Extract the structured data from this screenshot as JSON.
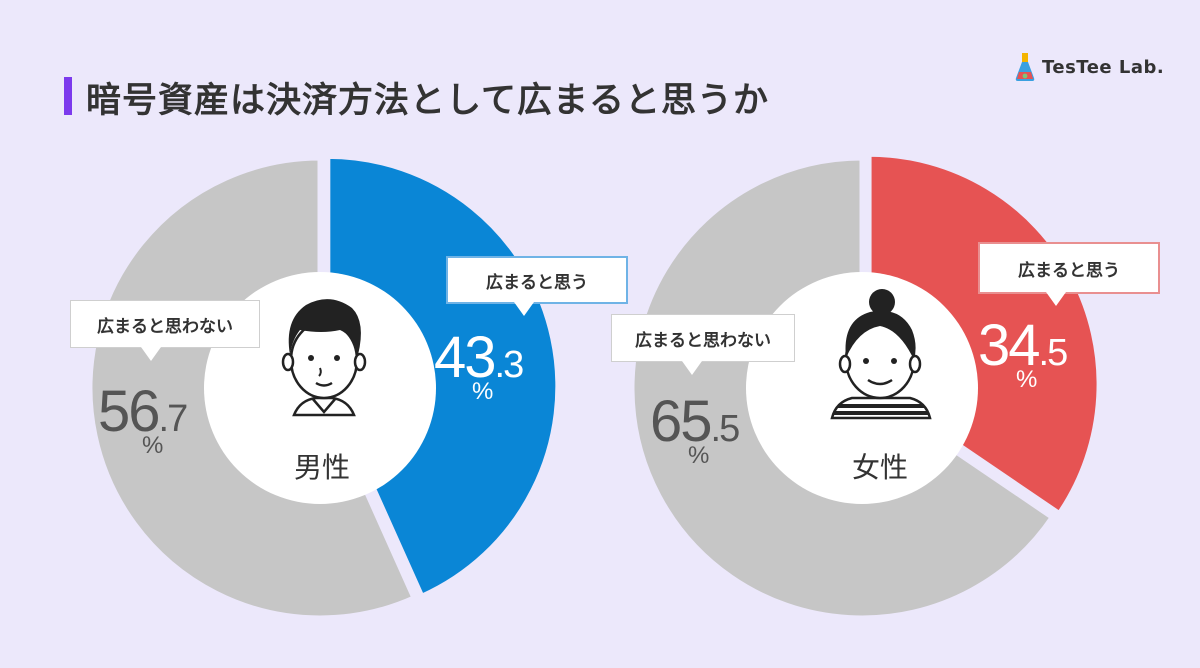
{
  "title": "暗号資産は決済方法として広まると思うか",
  "brand": {
    "name": "TesTee Lab."
  },
  "colors": {
    "background": "#ece8fb",
    "accent": "#7c3aed",
    "male_yes": "#0a86d6",
    "female_yes": "#e65353",
    "no": "#c6c6c6"
  },
  "chart_data": [
    {
      "type": "pie",
      "label": "男性",
      "slices": [
        {
          "name": "広まると思う",
          "value": 43.3,
          "color": "#0a86d6"
        },
        {
          "name": "広まると思わない",
          "value": 56.7,
          "color": "#c6c6c6"
        }
      ],
      "values_display": {
        "yes_int": "43",
        "yes_dec": ".3",
        "no_int": "56",
        "no_dec": ".7",
        "unit": "%"
      }
    },
    {
      "type": "pie",
      "label": "女性",
      "slices": [
        {
          "name": "広まると思う",
          "value": 34.5,
          "color": "#e65353"
        },
        {
          "name": "広まると思わない",
          "value": 65.5,
          "color": "#c6c6c6"
        }
      ],
      "values_display": {
        "yes_int": "34",
        "yes_dec": ".5",
        "no_int": "65",
        "no_dec": ".5",
        "unit": "%"
      }
    }
  ]
}
